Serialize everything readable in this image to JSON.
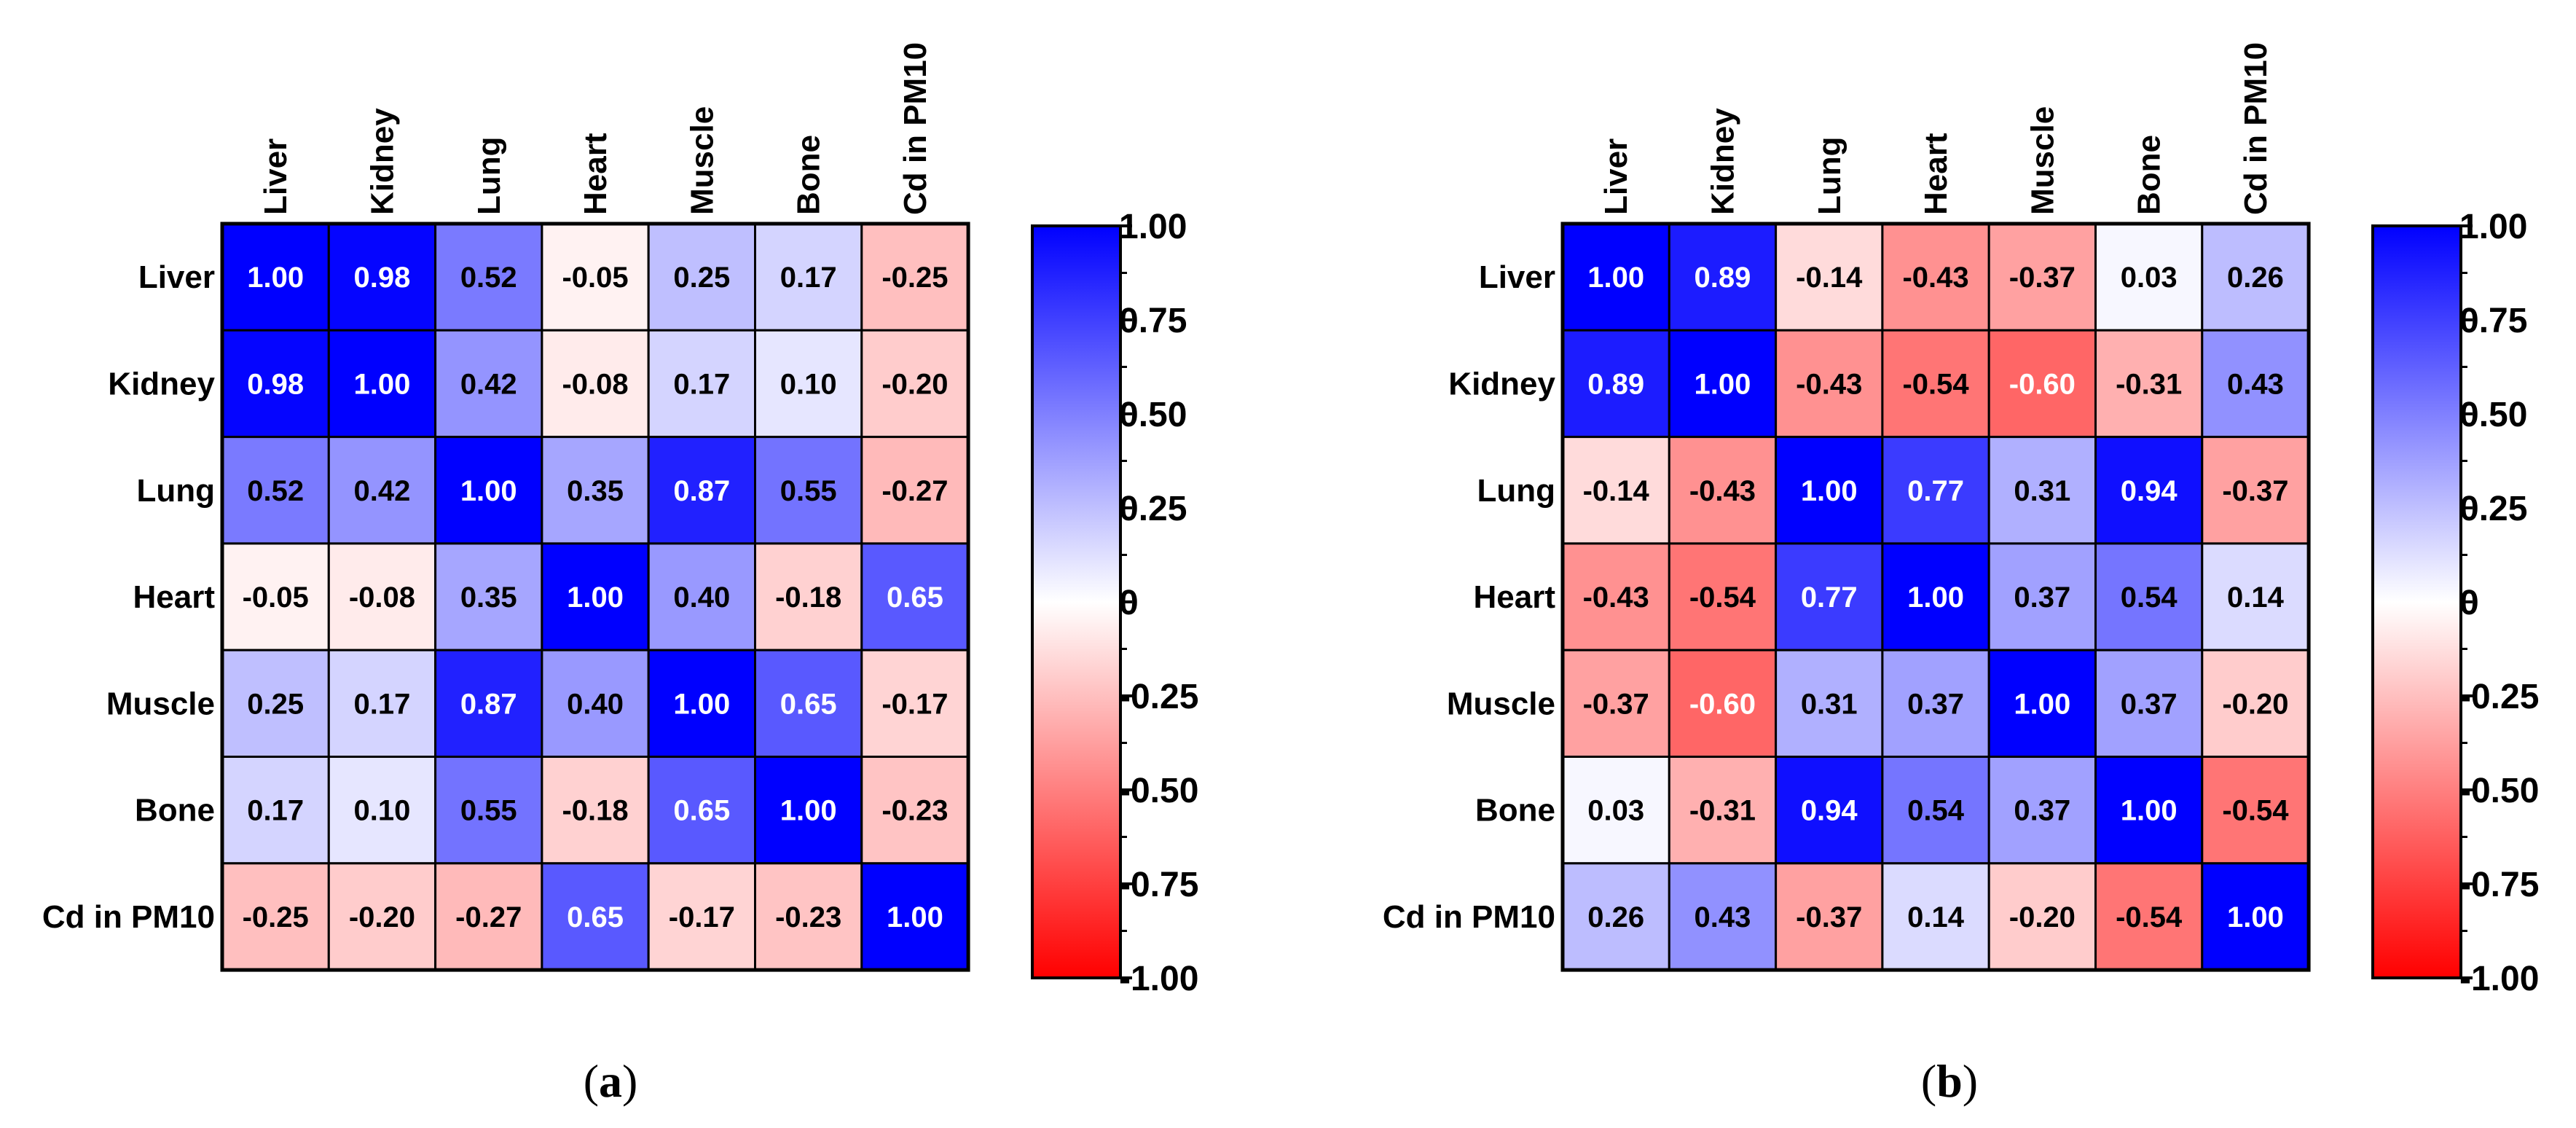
{
  "colors": {
    "positive": "#0000ff",
    "neutral": "#ffffff",
    "negative": "#ff0000",
    "grid": "#000000"
  },
  "chart_data": [
    {
      "type": "heatmap",
      "id": "a",
      "caption": "(a)",
      "caption_letter": "a",
      "title": "",
      "rows": [
        "Liver",
        "Kidney",
        "Lung",
        "Heart",
        "Muscle",
        "Bone",
        "Cd in PM10"
      ],
      "columns": [
        "Liver",
        "Kidney",
        "Lung",
        "Heart",
        "Muscle",
        "Bone",
        "Cd in PM10"
      ],
      "values": [
        [
          1.0,
          0.98,
          0.52,
          -0.05,
          0.25,
          0.17,
          -0.25
        ],
        [
          0.98,
          1.0,
          0.42,
          -0.08,
          0.17,
          0.1,
          -0.2
        ],
        [
          0.52,
          0.42,
          1.0,
          0.35,
          0.87,
          0.55,
          -0.27
        ],
        [
          -0.05,
          -0.08,
          0.35,
          1.0,
          0.4,
          -0.18,
          0.65
        ],
        [
          0.25,
          0.17,
          0.87,
          0.4,
          1.0,
          0.65,
          -0.17
        ],
        [
          0.17,
          0.1,
          0.55,
          -0.18,
          0.65,
          1.0,
          -0.23
        ],
        [
          -0.25,
          -0.2,
          -0.27,
          0.65,
          -0.17,
          -0.23,
          1.0
        ]
      ],
      "colorbar": {
        "range": [
          -1,
          1
        ],
        "ticks": [
          1.0,
          0.75,
          0.5,
          0.25,
          0,
          -0.25,
          -0.5,
          -0.75,
          -1.0
        ],
        "tick_labels": [
          "1.00",
          "0.75",
          "0.50",
          "0.25",
          "0",
          "-0.25",
          "-0.50",
          "-0.75",
          "-1.00"
        ]
      }
    },
    {
      "type": "heatmap",
      "id": "b",
      "caption": "(b)",
      "caption_letter": "b",
      "title": "",
      "rows": [
        "Liver",
        "Kidney",
        "Lung",
        "Heart",
        "Muscle",
        "Bone",
        "Cd in PM10"
      ],
      "columns": [
        "Liver",
        "Kidney",
        "Lung",
        "Heart",
        "Muscle",
        "Bone",
        "Cd in PM10"
      ],
      "values": [
        [
          1.0,
          0.89,
          -0.14,
          -0.43,
          -0.37,
          0.03,
          0.26
        ],
        [
          0.89,
          1.0,
          -0.43,
          -0.54,
          -0.6,
          -0.31,
          0.43
        ],
        [
          -0.14,
          -0.43,
          1.0,
          0.77,
          0.31,
          0.94,
          -0.37
        ],
        [
          -0.43,
          -0.54,
          0.77,
          1.0,
          0.37,
          0.54,
          0.14
        ],
        [
          -0.37,
          -0.6,
          0.31,
          0.37,
          1.0,
          0.37,
          -0.2
        ],
        [
          0.03,
          -0.31,
          0.94,
          0.54,
          0.37,
          1.0,
          -0.54
        ],
        [
          0.26,
          0.43,
          -0.37,
          0.14,
          -0.2,
          -0.54,
          1.0
        ]
      ],
      "colorbar": {
        "range": [
          -1,
          1
        ],
        "ticks": [
          1.0,
          0.75,
          0.5,
          0.25,
          0,
          -0.25,
          -0.5,
          -0.75,
          -1.0
        ],
        "tick_labels": [
          "1.00",
          "0.75",
          "0.50",
          "0.25",
          "0",
          "-0.25",
          "-0.50",
          "-0.75",
          "-1.00"
        ]
      }
    }
  ]
}
